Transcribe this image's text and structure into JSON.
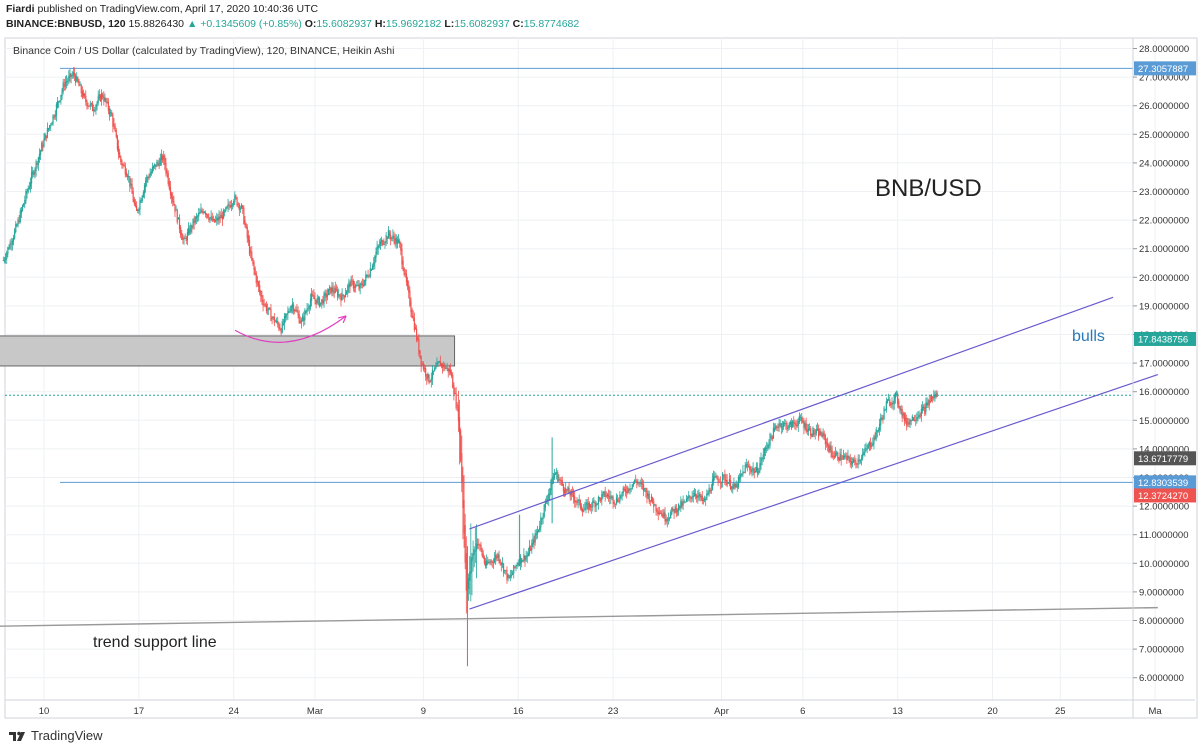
{
  "header": {
    "author": "Fiardi",
    "published": "published on TradingView.com, April 17, 2020 10:40:36 UTC",
    "symbol": "BINANCE:BNBUSD, 120",
    "last": "15.8826430",
    "change": "▲ +0.1345609 (+0.85%)",
    "o_label": "O:",
    "o_value": "15.6082937",
    "h_label": "H:",
    "h_value": "15.9692182",
    "l_label": "L:",
    "l_value": "15.6082937",
    "c_label": "C:",
    "c_value": "15.8774682"
  },
  "chart_title": "Binance Coin / US Dollar (calculated by TradingView), 120, BINANCE, Heikin Ashi",
  "footer_brand": "TradingView",
  "colors": {
    "up": "#26a69a",
    "down": "#ef5350",
    "channel": "#6a5acd",
    "arc": "#e040c0",
    "support": "#999999",
    "zone": "#c8c8c8"
  },
  "chart_data": {
    "type": "candlestick",
    "title": "Binance Coin / US Dollar (calculated by TradingView), 120, BINANCE, Heikin Ashi",
    "ylim": [
      5.5,
      28.3
    ],
    "y_ticks": [
      "28.0000000",
      "27.0000000",
      "26.0000000",
      "25.0000000",
      "24.0000000",
      "23.0000000",
      "22.0000000",
      "21.0000000",
      "20.0000000",
      "19.0000000",
      "18.0000000",
      "17.0000000",
      "16.0000000",
      "15.0000000",
      "14.0000000",
      "13.0000000",
      "12.0000000",
      "11.0000000",
      "10.0000000",
      "9.0000000",
      "8.0000000",
      "7.0000000",
      "6.0000000"
    ],
    "y_tick_values": [
      28,
      27,
      26,
      25,
      24,
      23,
      22,
      21,
      20,
      19,
      18,
      17,
      16,
      15,
      14,
      13,
      12,
      11,
      10,
      9,
      8,
      7,
      6
    ],
    "x_ticks": [
      "10",
      "17",
      "24",
      "Mar",
      "9",
      "16",
      "23",
      "Apr",
      "6",
      "13",
      "20",
      "25",
      "Ma"
    ],
    "x_tick_days": [
      0,
      7,
      14,
      20,
      28,
      35,
      42,
      50,
      56,
      63,
      70,
      75,
      82
    ],
    "price_path": [
      [
        -3,
        20.6
      ],
      [
        -2,
        21.8
      ],
      [
        -1,
        23.4
      ],
      [
        0,
        24.8
      ],
      [
        0.8,
        25.8
      ],
      [
        1.5,
        26.8
      ],
      [
        2.2,
        27.1
      ],
      [
        3,
        26.2
      ],
      [
        3.6,
        25.9
      ],
      [
        4.3,
        26.4
      ],
      [
        5,
        25.6
      ],
      [
        5.6,
        24.1
      ],
      [
        6.2,
        23.6
      ],
      [
        6.8,
        22.2
      ],
      [
        7.5,
        23.4
      ],
      [
        8.2,
        23.9
      ],
      [
        8.8,
        24.2
      ],
      [
        9.4,
        22.9
      ],
      [
        10.3,
        21.2
      ],
      [
        11,
        21.9
      ],
      [
        11.8,
        22.4
      ],
      [
        12.5,
        21.9
      ],
      [
        13.3,
        22.2
      ],
      [
        14,
        22.8
      ],
      [
        14.6,
        22.4
      ],
      [
        15.3,
        20.6
      ],
      [
        16,
        19.3
      ],
      [
        16.8,
        18.6
      ],
      [
        17.5,
        18.2
      ],
      [
        18.3,
        19.1
      ],
      [
        19,
        18.4
      ],
      [
        19.7,
        19.3
      ],
      [
        20.4,
        19.1
      ],
      [
        21.2,
        19.6
      ],
      [
        22,
        19.3
      ],
      [
        22.6,
        19.8
      ],
      [
        23.3,
        19.6
      ],
      [
        24,
        20.2
      ],
      [
        24.7,
        21.1
      ],
      [
        25.4,
        21.5
      ],
      [
        26.2,
        21.2
      ],
      [
        26.8,
        19.6
      ],
      [
        27.3,
        18.4
      ],
      [
        27.8,
        17.1
      ],
      [
        28.4,
        16.4
      ],
      [
        29.2,
        17.0
      ],
      [
        30,
        16.7
      ],
      [
        30.6,
        15.1
      ],
      [
        30.9,
        12.2
      ],
      [
        31.2,
        8.8
      ],
      [
        31.5,
        10.1
      ],
      [
        32,
        10.8
      ],
      [
        32.6,
        9.9
      ],
      [
        33.5,
        10.3
      ],
      [
        34.3,
        9.4
      ],
      [
        35,
        10.1
      ],
      [
        35.7,
        10.3
      ],
      [
        36.4,
        11.1
      ],
      [
        37,
        12.1
      ],
      [
        37.7,
        13.2
      ],
      [
        38.4,
        12.6
      ],
      [
        39.1,
        12.3
      ],
      [
        39.8,
        11.9
      ],
      [
        40.6,
        12.1
      ],
      [
        41.4,
        12.4
      ],
      [
        42.2,
        12.2
      ],
      [
        43,
        12.6
      ],
      [
        43.7,
        12.9
      ],
      [
        44.4,
        12.5
      ],
      [
        45.1,
        12.0
      ],
      [
        45.9,
        11.6
      ],
      [
        46.6,
        11.9
      ],
      [
        47.3,
        12.1
      ],
      [
        48,
        12.5
      ],
      [
        48.7,
        12.1
      ],
      [
        49.4,
        12.9
      ],
      [
        50.2,
        13.0
      ],
      [
        51,
        12.6
      ],
      [
        51.8,
        13.4
      ],
      [
        52.6,
        13.2
      ],
      [
        53.4,
        14.2
      ],
      [
        54.2,
        14.9
      ],
      [
        55,
        14.8
      ],
      [
        55.8,
        15.0
      ],
      [
        56.6,
        14.6
      ],
      [
        57.4,
        14.5
      ],
      [
        58.2,
        13.8
      ],
      [
        59,
        13.7
      ],
      [
        59.8,
        13.5
      ],
      [
        60.6,
        13.9
      ],
      [
        61.4,
        14.5
      ],
      [
        62.2,
        15.6
      ],
      [
        62.9,
        15.8
      ],
      [
        63.6,
        14.9
      ],
      [
        64.4,
        15.2
      ],
      [
        65,
        15.4
      ],
      [
        65.5,
        15.8
      ],
      [
        66.0,
        15.9
      ]
    ],
    "annotations": [
      "BNB/USD",
      "bulls",
      "trend support line"
    ],
    "price_labels": [
      {
        "text": "27.3057887",
        "value": 27.3057887,
        "color": "#5b9bd5"
      },
      {
        "text": "17.8438756",
        "value": 17.8438756,
        "color": "#26a69a"
      },
      {
        "text": "13.6717779",
        "value": 13.6717779,
        "color": "#555555"
      },
      {
        "text": "12.8303539",
        "value": 12.8303539,
        "color": "#5b9bd5"
      },
      {
        "text": "12.3724270",
        "value": 12.372427,
        "color": "#ef5350"
      }
    ],
    "horizontal_lines": [
      {
        "value": 27.3057887,
        "color": "#5b9bd5"
      },
      {
        "value": 12.8303539,
        "color": "#5b9bd5"
      },
      {
        "value": 15.8774682,
        "color": "#26a69a",
        "dashed": true
      }
    ],
    "zone": {
      "y_from": 16.9,
      "y_to": 17.95,
      "x_from_day": -3.5,
      "x_to_day": 30.3
    },
    "channel": {
      "upper": [
        [
          31.4,
          11.2
        ],
        [
          78.9,
          19.3
        ]
      ],
      "lower": [
        [
          31.4,
          8.4
        ],
        [
          82.2,
          16.6
        ]
      ]
    },
    "support_line": [
      [
        -3.5,
        7.8
      ],
      [
        82.2,
        8.45
      ]
    ]
  }
}
